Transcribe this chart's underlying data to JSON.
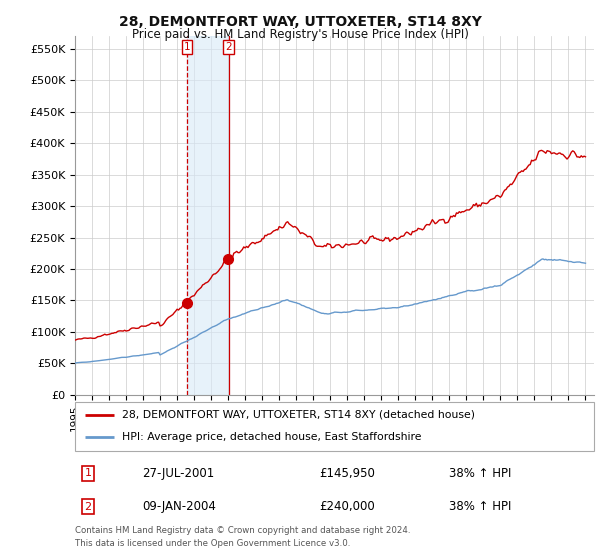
{
  "title": "28, DEMONTFORT WAY, UTTOXETER, ST14 8XY",
  "subtitle": "Price paid vs. HM Land Registry's House Price Index (HPI)",
  "ylabel_ticks": [
    "£0",
    "£50K",
    "£100K",
    "£150K",
    "£200K",
    "£250K",
    "£300K",
    "£350K",
    "£400K",
    "£450K",
    "£500K",
    "£550K"
  ],
  "ytick_values": [
    0,
    50000,
    100000,
    150000,
    200000,
    250000,
    300000,
    350000,
    400000,
    450000,
    500000,
    550000
  ],
  "ylim": [
    0,
    570000
  ],
  "xlim_start": 1995.0,
  "xlim_end": 2025.5,
  "transaction1_date": 2001.57,
  "transaction1_price": 145950,
  "transaction2_date": 2004.03,
  "transaction2_price": 240000,
  "transaction1_text": "27-JUL-2001",
  "transaction1_price_text": "£145,950",
  "transaction1_hpi": "38% ↑ HPI",
  "transaction2_text": "09-JAN-2004",
  "transaction2_price_text": "£240,000",
  "transaction2_hpi": "38% ↑ HPI",
  "legend_line1": "28, DEMONTFORT WAY, UTTOXETER, ST14 8XY (detached house)",
  "legend_line2": "HPI: Average price, detached house, East Staffordshire",
  "footer": "Contains HM Land Registry data © Crown copyright and database right 2024.\nThis data is licensed under the Open Government Licence v3.0.",
  "line_color_red": "#cc0000",
  "line_color_blue": "#6699cc",
  "shading_color": "#d8eaf8",
  "background_color": "#ffffff",
  "grid_color": "#cccccc"
}
